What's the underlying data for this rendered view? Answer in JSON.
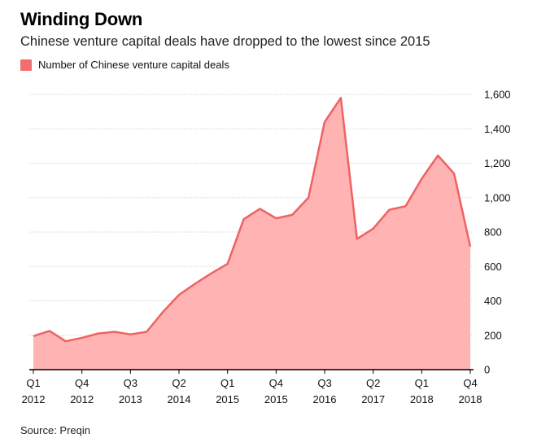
{
  "title": "Winding Down",
  "subtitle": "Chinese venture capital deals have dropped to the lowest since 2015",
  "source": "Source: Preqin",
  "colors": {
    "line": "#f06262",
    "fill": "#ffb3b3",
    "grid": "#d0d0d0",
    "axis": "#000000"
  },
  "chart_data": {
    "type": "area",
    "title": "Winding Down",
    "legend": [
      "Number of Chinese venture capital deals"
    ],
    "ylim": [
      0,
      1600
    ],
    "yticks": [
      0,
      200,
      400,
      600,
      800,
      1000,
      1200,
      1400,
      1600
    ],
    "ytick_labels": [
      "0",
      "200",
      "400",
      "600",
      "800",
      "1,000",
      "1,200",
      "1,400",
      "1,600"
    ],
    "xtick_positions": [
      0,
      3,
      6,
      9,
      12,
      15,
      18,
      21,
      24,
      27
    ],
    "xtick_labels": [
      [
        "Q1",
        "2012"
      ],
      [
        "Q4",
        "2012"
      ],
      [
        "Q3",
        "2013"
      ],
      [
        "Q2",
        "2014"
      ],
      [
        "Q1",
        "2015"
      ],
      [
        "Q4",
        "2015"
      ],
      [
        "Q3",
        "2016"
      ],
      [
        "Q2",
        "2017"
      ],
      [
        "Q1",
        "2018"
      ],
      [
        "Q4",
        "2018"
      ]
    ],
    "series": [
      {
        "name": "Number of Chinese venture capital deals",
        "quarters": [
          "Q1 2012",
          "Q2 2012",
          "Q3 2012",
          "Q4 2012",
          "Q1 2013",
          "Q2 2013",
          "Q3 2013",
          "Q4 2013",
          "Q1 2014",
          "Q2 2014",
          "Q3 2014",
          "Q4 2014",
          "Q1 2015",
          "Q2 2015",
          "Q3 2015",
          "Q4 2015",
          "Q1 2016",
          "Q2 2016",
          "Q3 2016",
          "Q4 2016",
          "Q1 2017",
          "Q2 2017",
          "Q3 2017",
          "Q4 2017",
          "Q1 2018",
          "Q2 2018",
          "Q3 2018",
          "Q4 2018"
        ],
        "values": [
          195,
          225,
          165,
          185,
          210,
          220,
          205,
          220,
          335,
          435,
          500,
          560,
          615,
          875,
          935,
          880,
          900,
          1000,
          1440,
          1580,
          760,
          820,
          930,
          950,
          1110,
          1245,
          1140,
          715
        ]
      }
    ]
  }
}
